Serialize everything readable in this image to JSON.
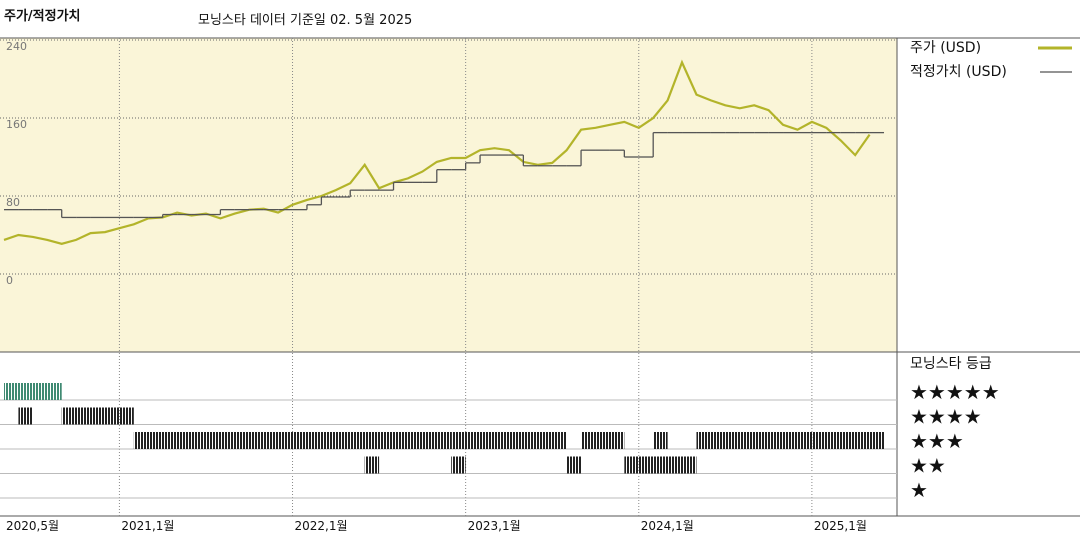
{
  "chart_data": {
    "type": "line",
    "title": "주가/적정가치",
    "subtitle": "모닝스타 데이터 기준일 02. 5월 2025",
    "x": [
      "2020-05",
      "2020-06",
      "2020-07",
      "2020-08",
      "2020-09",
      "2020-10",
      "2020-11",
      "2020-12",
      "2021-01",
      "2021-02",
      "2021-03",
      "2021-04",
      "2021-05",
      "2021-06",
      "2021-07",
      "2021-08",
      "2021-09",
      "2021-10",
      "2021-11",
      "2021-12",
      "2022-01",
      "2022-02",
      "2022-03",
      "2022-04",
      "2022-05",
      "2022-06",
      "2022-07",
      "2022-08",
      "2022-09",
      "2022-10",
      "2022-11",
      "2022-12",
      "2023-01",
      "2023-02",
      "2023-03",
      "2023-04",
      "2023-05",
      "2023-06",
      "2023-07",
      "2023-08",
      "2023-09",
      "2023-10",
      "2023-11",
      "2023-12",
      "2024-01",
      "2024-02",
      "2024-03",
      "2024-04",
      "2024-05",
      "2024-06",
      "2024-07",
      "2024-08",
      "2024-09",
      "2024-10",
      "2024-11",
      "2024-12",
      "2025-01",
      "2025-02",
      "2025-03",
      "2025-04",
      "2025-05"
    ],
    "series": [
      {
        "name": "주가 (USD)",
        "color": "#b3b42a",
        "values": [
          35,
          40,
          38,
          35,
          31,
          35,
          42,
          43,
          47,
          51,
          57,
          58,
          63,
          60,
          62,
          57,
          62,
          66,
          67,
          63,
          71,
          76,
          80,
          86,
          93,
          112,
          88,
          94,
          98,
          105,
          115,
          119,
          119,
          127,
          129,
          127,
          115,
          112,
          114,
          127,
          148,
          150,
          153,
          156,
          150,
          160,
          178,
          217,
          184,
          178,
          173,
          170,
          173,
          168,
          153,
          148,
          156,
          150,
          137,
          122,
          143
        ]
      },
      {
        "name": "적정가치 (USD)",
        "color": "#555555",
        "step": true,
        "values": [
          66,
          66,
          66,
          66,
          58,
          58,
          58,
          58,
          58,
          58,
          58,
          61,
          61,
          61,
          61,
          66,
          66,
          66,
          66,
          66,
          66,
          71,
          79,
          79,
          86,
          86,
          86,
          94,
          94,
          94,
          107,
          107,
          114,
          122,
          122,
          122,
          111,
          111,
          111,
          111,
          127,
          127,
          127,
          120,
          120,
          145,
          145,
          145,
          145,
          145,
          145,
          145,
          145,
          145,
          145,
          145,
          145,
          145,
          145,
          145,
          145
        ]
      }
    ],
    "ylim": [
      -80,
      240
    ],
    "yticks": [
      0,
      80,
      160,
      240
    ],
    "xlim": [
      "2020-05",
      "2025-06"
    ],
    "xticks": [
      {
        "value": "2020-05",
        "label": "2020,5월"
      },
      {
        "value": "2021-01",
        "label": "2021,1월"
      },
      {
        "value": "2022-01",
        "label": "2022,1월"
      },
      {
        "value": "2023-01",
        "label": "2023,1월"
      },
      {
        "value": "2024-01",
        "label": "2024,1월"
      },
      {
        "value": "2025-01",
        "label": "2025,1월"
      }
    ],
    "grid": true,
    "background": "#faf5d8",
    "rating": {
      "title": "모닝스타 등급",
      "rows": [
        {
          "label": "★★★★★",
          "color": "#3f8a72",
          "periods": [
            [
              "2020-05",
              "2020-08"
            ]
          ]
        },
        {
          "label": "★★★★",
          "color": "#222222",
          "periods": [
            [
              "2020-06",
              "2020-06"
            ],
            [
              "2020-09",
              "2021-01"
            ]
          ]
        },
        {
          "label": "★★★",
          "color": "#222222",
          "periods": [
            [
              "2021-02",
              "2022-11"
            ],
            [
              "2022-12",
              "2023-07"
            ],
            [
              "2023-09",
              "2023-11"
            ],
            [
              "2024-02",
              "2024-02"
            ],
            [
              "2024-05",
              "2025-05"
            ]
          ]
        },
        {
          "label": "★★",
          "color": "#222222",
          "periods": [
            [
              "2022-06",
              "2022-06"
            ],
            [
              "2022-12",
              "2022-12"
            ],
            [
              "2023-08",
              "2023-08"
            ],
            [
              "2023-12",
              "2023-12"
            ],
            [
              "2024-01",
              "2024-04"
            ]
          ]
        },
        {
          "label": "★",
          "color": "#222222",
          "periods": []
        }
      ]
    }
  }
}
